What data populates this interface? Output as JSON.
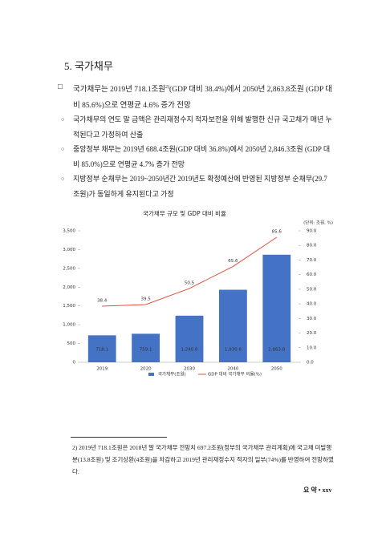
{
  "heading": "5. 국가채무",
  "bullet": {
    "parts": [
      "국가채무는 2019년 718.1조원",
      "2)",
      "(GDP 대비 38.4%)에서 2050년 2,863.8조원 (GDP 대비 85.6%)으로 연평균 4.6% 증가 전망"
    ]
  },
  "sub_bullets": [
    "국가채무의 연도 말 금액은 관리재정수지 적자보전을 위해 발행한 신규 국고채가 매년 누적된다고 가정하여 산출",
    "중앙정부 채무는 2019년 688.4조원(GDP 대비 36.8%)에서 2050년 2,846.3조원 (GDP 대비 85.0%)으로 연평균 4.7% 증가 전망",
    "지방정부 순채무는 2019~2050년간 2019년도 확정예산에 반영된 지방정부 순채무(29.7조원)가 동일하게 유지된다고 가정"
  ],
  "chart_data": {
    "type": "bar",
    "title": "국가채무 규모 및 GDP 대비 비율",
    "unit_label": "(단위: 조원, %)",
    "categories": [
      "2019",
      "2020",
      "2030",
      "2040",
      "2050"
    ],
    "series": [
      {
        "name": "국가채무(조원)",
        "type": "bar",
        "color": "#4472c4",
        "values": [
          718.1,
          759.1,
          1240.8,
          1930.8,
          2863.8
        ],
        "value_labels": [
          "718.1",
          "759.1",
          "1,240.8",
          "1,930.8",
          "2,863.8"
        ]
      },
      {
        "name": "GDP 대비 국가채무 비율(%)",
        "type": "line",
        "axis": "y2",
        "color": "#e0503a",
        "values": [
          38.4,
          39.5,
          50.5,
          65.6,
          85.6
        ]
      }
    ],
    "ylim": [
      0,
      3500
    ],
    "yticks": [
      0,
      500,
      {
        "value": 1000,
        "label": "1,000"
      },
      {
        "value": 1500,
        "label": "1,500"
      },
      {
        "value": 2000,
        "label": "2,000"
      },
      {
        "value": 2500,
        "label": "2,500"
      },
      {
        "value": 3000,
        "label": "3,000"
      },
      {
        "value": 3500,
        "label": "3,500"
      }
    ],
    "y2lim": [
      0,
      90
    ],
    "y2ticks": [
      {
        "value": 0,
        "label": "0.0"
      },
      {
        "value": 10,
        "label": "10.0"
      },
      {
        "value": 20,
        "label": "20.0"
      },
      {
        "value": 30,
        "label": "30.0"
      },
      {
        "value": 40,
        "label": "40.0"
      },
      {
        "value": 50,
        "label": "50.0"
      },
      {
        "value": 60,
        "label": "60.0"
      },
      {
        "value": 70,
        "label": "70.0"
      },
      {
        "value": 80,
        "label": "80.0"
      },
      {
        "value": 90,
        "label": "90.0"
      }
    ],
    "legend": "bottom"
  },
  "footnote": "2) 2019년 718.1조원은 2018년 말 국가채무 전망치 697.2조원(정부의 국가채무 관리계획)에 국고채 미발행분(13.8조원) 및 조기상환(4조원)을 차감하고 2019년 관리재정수지 적자의 일부(74%)를 반영하여 전망하였다.",
  "footer": "요 약 • xxv"
}
